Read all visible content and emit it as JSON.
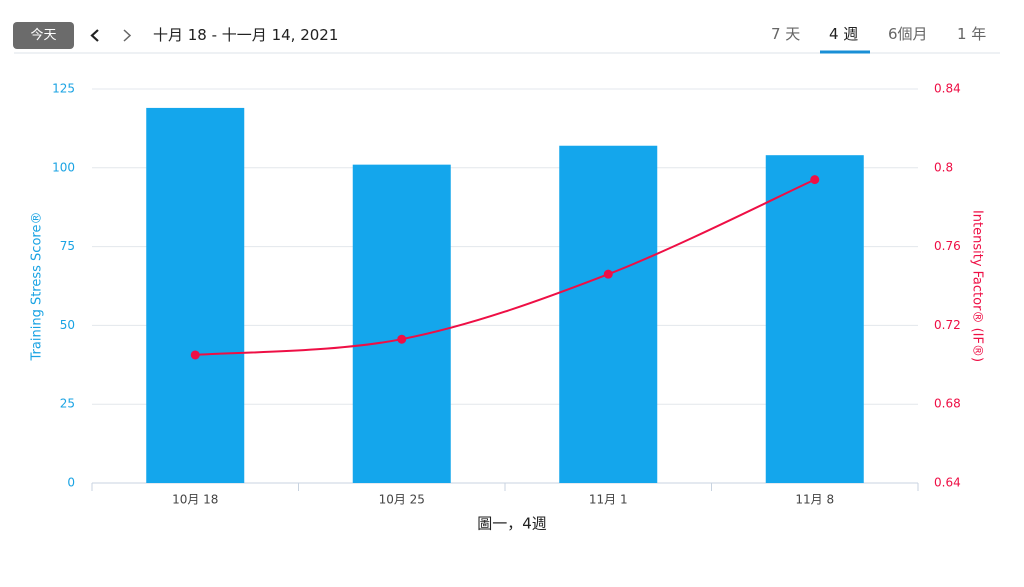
{
  "header": {
    "today_button": "今天",
    "date_range": "十月 18 - 十一月 14, 2021",
    "tabs": [
      "7 天",
      "4 週",
      "6個月",
      "1 年"
    ]
  },
  "chart_data": {
    "type": "bar",
    "caption": "圖一，4週",
    "categories": [
      "10月 18",
      "10月 25",
      "11月 1",
      "11月 8"
    ],
    "ylabel": "Training Stress Score®",
    "y2label": "Intensity Factor® (IF®)",
    "ylim": [
      0,
      125
    ],
    "yticks": [
      0,
      25,
      50,
      75,
      100,
      125
    ],
    "y2lim": [
      0.64,
      0.84
    ],
    "y2ticks": [
      0.64,
      0.68,
      0.72,
      0.76,
      0.8,
      0.84
    ],
    "grid": true,
    "ycolor": "#1aa3e3",
    "y2color": "#ee0f45",
    "series": [
      {
        "type": "bar",
        "color": "#14a6ec",
        "values": [
          119,
          101,
          107,
          104
        ]
      },
      {
        "type": "line",
        "axis": "y2",
        "color": "#ee0f45",
        "values": [
          0.705,
          0.713,
          0.746,
          0.794
        ]
      }
    ]
  }
}
